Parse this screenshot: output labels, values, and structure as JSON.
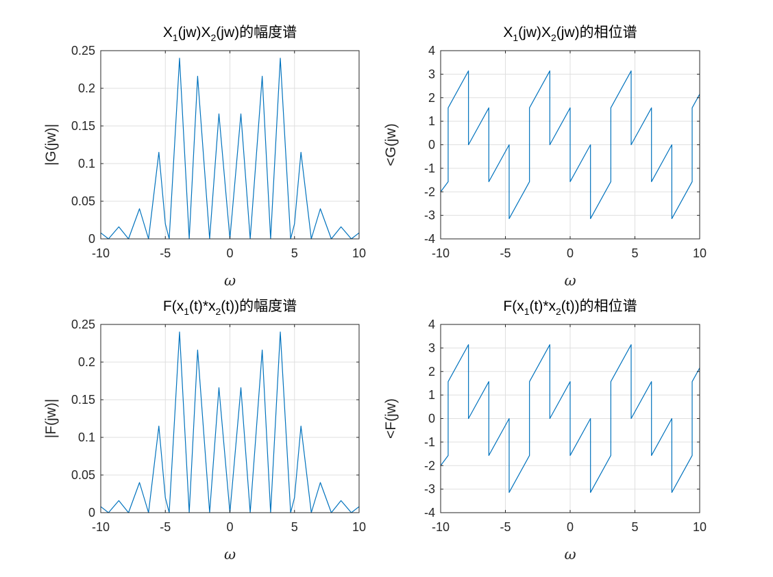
{
  "figure": {
    "colors": {
      "line": "#0072bd",
      "axes": "#262626",
      "grid": "#dfdfdf",
      "background": "#ffffff"
    }
  },
  "chart_data": [
    {
      "type": "line",
      "title": "X_1(jw)X_2(jw)的幅度谱",
      "title_parts": {
        "p1": "X",
        "s1": "1",
        "p2": "(jw)X",
        "s2": "2",
        "p3": "(jw)的幅度谱"
      },
      "xlabel": "ω",
      "ylabel": "|G(jw)|",
      "xlim": [
        -10,
        10
      ],
      "ylim": [
        0,
        0.25
      ],
      "xticks": [
        -10,
        -5,
        0,
        5,
        10
      ],
      "xtick_labels": [
        "-10",
        "-5",
        "0",
        "5",
        "10"
      ],
      "yticks": [
        0,
        0.05,
        0.1,
        0.15,
        0.2,
        0.25
      ],
      "ytick_labels": [
        "0",
        "0.05",
        "0.1",
        "0.15",
        "0.2",
        "0.25"
      ],
      "grid": true,
      "series": [
        {
          "x": [
            -10,
            -9.4,
            -8.6,
            -7.85,
            -7.0,
            -6.3,
            -5.5,
            -5.0,
            -4.7,
            -3.9,
            -3.15,
            -2.5,
            -1.57,
            -0.85,
            0.0,
            0.85,
            1.57,
            2.5,
            3.15,
            3.9,
            4.7,
            5.0,
            5.5,
            6.3,
            7.0,
            7.85,
            8.6,
            9.4,
            10
          ],
          "y": [
            0.008,
            0.0,
            0.016,
            0.0,
            0.04,
            0.0,
            0.115,
            0.02,
            0.0,
            0.24,
            0.0,
            0.216,
            0.0,
            0.166,
            0.0,
            0.166,
            0.0,
            0.216,
            0.0,
            0.24,
            0.0,
            0.02,
            0.115,
            0.0,
            0.04,
            0.0,
            0.016,
            0.0,
            0.008
          ]
        }
      ]
    },
    {
      "type": "line",
      "title": "X_1(jw)X_2(jw)的相位谱",
      "title_parts": {
        "p1": "X",
        "s1": "1",
        "p2": "(jw)X",
        "s2": "2",
        "p3": "(jw)的相位谱"
      },
      "xlabel": "ω",
      "ylabel": "<G(jw)",
      "xlim": [
        -10,
        10
      ],
      "ylim": [
        -4,
        4
      ],
      "xticks": [
        -10,
        -5,
        0,
        5,
        10
      ],
      "xtick_labels": [
        "-10",
        "-5",
        "0",
        "5",
        "10"
      ],
      "yticks": [
        -4,
        -3,
        -2,
        -1,
        0,
        1,
        2,
        3,
        4
      ],
      "ytick_labels": [
        "-4",
        "-3",
        "-2",
        "-1",
        "0",
        "1",
        "2",
        "3",
        "4"
      ],
      "grid": true,
      "series": [
        {
          "x": [
            -10,
            -9.42,
            -9.42,
            -7.85,
            -7.85,
            -6.28,
            -6.28,
            -4.71,
            -4.71,
            -3.14,
            -3.14,
            -1.57,
            -1.57,
            0.0,
            0.0,
            1.57,
            1.57,
            3.14,
            3.14,
            4.71,
            4.71,
            6.28,
            6.28,
            7.85,
            7.85,
            9.42,
            9.42,
            10
          ],
          "y": [
            -2.0,
            -1.57,
            1.57,
            3.14,
            0.0,
            1.57,
            -1.57,
            0.0,
            -3.14,
            -1.57,
            1.57,
            3.14,
            0.0,
            1.57,
            -1.57,
            0.0,
            -3.14,
            -1.57,
            1.57,
            3.14,
            0.0,
            1.57,
            -1.57,
            0.0,
            -3.14,
            -1.57,
            1.57,
            2.15
          ]
        }
      ]
    },
    {
      "type": "line",
      "title": "F(x_1(t)*x_2(t))的幅度谱",
      "title_parts": {
        "p1": "F(x",
        "s1": "1",
        "p2": "(t)*x",
        "s2": "2",
        "p3": "(t))的幅度谱"
      },
      "xlabel": "ω",
      "ylabel": "|F(jw)|",
      "xlim": [
        -10,
        10
      ],
      "ylim": [
        0,
        0.25
      ],
      "xticks": [
        -10,
        -5,
        0,
        5,
        10
      ],
      "xtick_labels": [
        "-10",
        "-5",
        "0",
        "5",
        "10"
      ],
      "yticks": [
        0,
        0.05,
        0.1,
        0.15,
        0.2,
        0.25
      ],
      "ytick_labels": [
        "0",
        "0.05",
        "0.1",
        "0.15",
        "0.2",
        "0.25"
      ],
      "grid": true,
      "series": [
        {
          "x": [
            -10,
            -9.4,
            -8.6,
            -7.85,
            -7.0,
            -6.3,
            -5.5,
            -5.0,
            -4.7,
            -3.9,
            -3.15,
            -2.5,
            -1.57,
            -0.85,
            0.0,
            0.85,
            1.57,
            2.5,
            3.15,
            3.9,
            4.7,
            5.0,
            5.5,
            6.3,
            7.0,
            7.85,
            8.6,
            9.4,
            10
          ],
          "y": [
            0.008,
            0.0,
            0.016,
            0.0,
            0.04,
            0.0,
            0.115,
            0.02,
            0.0,
            0.24,
            0.0,
            0.216,
            0.0,
            0.166,
            0.0,
            0.166,
            0.0,
            0.216,
            0.0,
            0.24,
            0.0,
            0.02,
            0.115,
            0.0,
            0.04,
            0.0,
            0.016,
            0.0,
            0.008
          ]
        }
      ]
    },
    {
      "type": "line",
      "title": "F(x_1(t)*x_2(t))的相位谱",
      "title_parts": {
        "p1": "F(x",
        "s1": "1",
        "p2": "(t)*x",
        "s2": "2",
        "p3": "(t))的相位谱"
      },
      "xlabel": "ω",
      "ylabel": "<F(jw)",
      "xlim": [
        -10,
        10
      ],
      "ylim": [
        -4,
        4
      ],
      "xticks": [
        -10,
        -5,
        0,
        5,
        10
      ],
      "xtick_labels": [
        "-10",
        "-5",
        "0",
        "5",
        "10"
      ],
      "yticks": [
        -4,
        -3,
        -2,
        -1,
        0,
        1,
        2,
        3,
        4
      ],
      "ytick_labels": [
        "-4",
        "-3",
        "-2",
        "-1",
        "0",
        "1",
        "2",
        "3",
        "4"
      ],
      "grid": true,
      "series": [
        {
          "x": [
            -10,
            -9.42,
            -9.42,
            -7.85,
            -7.85,
            -6.28,
            -6.28,
            -4.71,
            -4.71,
            -3.14,
            -3.14,
            -1.57,
            -1.57,
            0.0,
            0.0,
            1.57,
            1.57,
            3.14,
            3.14,
            4.71,
            4.71,
            6.28,
            6.28,
            7.85,
            7.85,
            9.42,
            9.42,
            10
          ],
          "y": [
            -2.0,
            -1.57,
            1.57,
            3.14,
            0.0,
            1.57,
            -1.57,
            0.0,
            -3.14,
            -1.57,
            1.57,
            3.14,
            0.0,
            1.57,
            -1.57,
            0.0,
            -3.14,
            -1.57,
            1.57,
            3.14,
            0.0,
            1.57,
            -1.57,
            0.0,
            -3.14,
            -1.57,
            1.57,
            2.15
          ]
        }
      ]
    }
  ]
}
